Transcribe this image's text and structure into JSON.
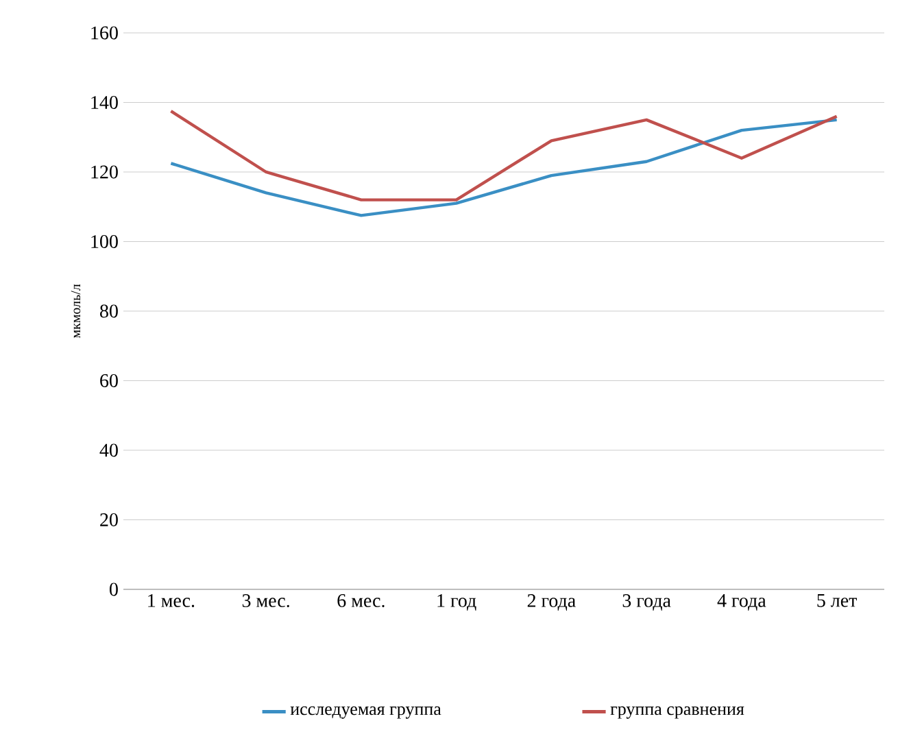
{
  "chart_data": {
    "type": "line",
    "ylabel": "мкмоль/л",
    "categories": [
      "1 мес.",
      "3 мес.",
      "6 мес.",
      "1 год",
      "2 года",
      "3 года",
      "4 года",
      "5 лет"
    ],
    "series": [
      {
        "name": "исследуемая группа",
        "color": "#3a8fc4",
        "values": [
          122.5,
          114,
          107.5,
          111,
          119,
          123,
          132,
          135
        ]
      },
      {
        "name": "группа сравнения",
        "color": "#c0504d",
        "values": [
          137.5,
          120,
          112,
          112,
          129,
          135,
          124,
          136
        ]
      }
    ],
    "ylim": [
      0,
      160
    ],
    "yticks": [
      0,
      20,
      40,
      60,
      80,
      100,
      120,
      140,
      160
    ],
    "grid": "y",
    "legend": "bottom",
    "marker": "none",
    "line_style": "solid"
  }
}
